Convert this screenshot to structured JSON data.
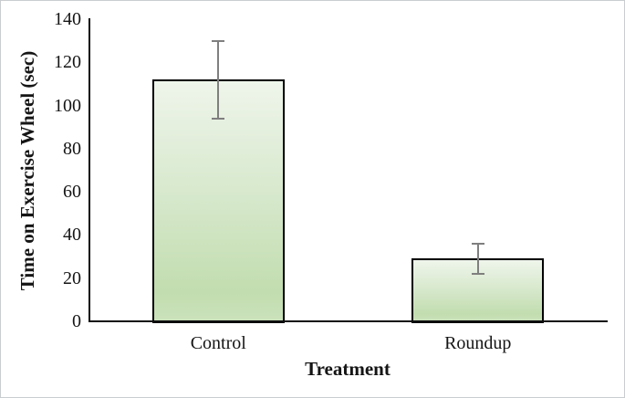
{
  "chart_data": {
    "type": "bar",
    "title": "",
    "categories": [
      "Control",
      "Roundup"
    ],
    "values": [
      112,
      29
    ],
    "error_bars": {
      "type": "symmetric",
      "values": [
        18,
        7
      ],
      "upper": [
        130,
        36
      ],
      "lower": [
        94,
        22
      ]
    },
    "xlabel": "Treatment",
    "ylabel": "Time on Exercise Wheel (sec)",
    "ylim": [
      0,
      140
    ],
    "ytick_step": 20,
    "ytick_labels": [
      "0",
      "20",
      "40",
      "60",
      "80",
      "100",
      "120",
      "140"
    ],
    "grid": false,
    "legend": "none",
    "colors": {
      "bar_gradient_top": "#eff5eb",
      "bar_gradient_mid": "#d8e9ce",
      "bar_gradient_low": "#c2ddaf",
      "bar_gradient_bottom": "#cbe2bb",
      "bar_border": "#000000",
      "error_bar": "#7f7f7f",
      "axis_line": "#0d0d0d",
      "text": "#151515",
      "frame_border": "#c9cdd0",
      "background": "#ffffff"
    }
  }
}
